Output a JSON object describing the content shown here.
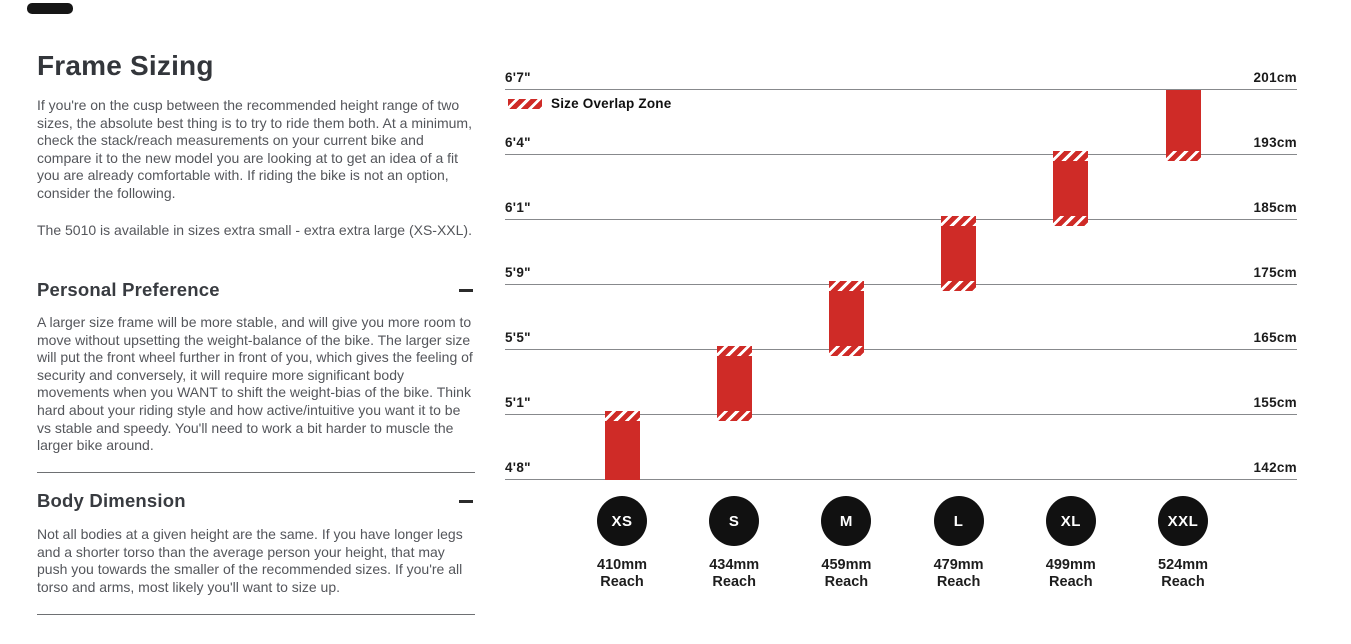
{
  "article": {
    "title": "Frame Sizing",
    "intro": "If you're on the cusp between the recommended height range of two sizes, the absolute best thing is to try to ride them both. At a minimum, check the stack/reach measurements on your current bike and compare it to the new model you are looking at to get an idea of a fit you are already comfortable with. If riding the bike is not an option, consider the following.",
    "availability": "The 5010 is available in sizes extra small - extra extra large (XS-XXL).",
    "sections": [
      {
        "heading": "Personal Preference",
        "collapse_state": "expanded",
        "body": "A larger size frame will be more stable, and will give you more room to move without upsetting the weight-balance of the bike. The larger size will put the front wheel further in front of you, which gives the feeling of security and conversely, it will require more significant body movements when you WANT to shift the weight-bias of the bike. Think hard about your riding style and how active/intuitive you want it to be vs stable and speedy. You'll need to work a bit harder to muscle the larger bike around."
      },
      {
        "heading": "Body Dimension",
        "collapse_state": "expanded",
        "body": "Not all bodies at a given height are the same. If you have longer legs and a shorter torso than the average person your height, that may push you towards the smaller of the recommended sizes. If you're all torso and arms, most likely you'll want to size up."
      }
    ]
  },
  "chart_data": {
    "type": "bar",
    "variant": "vertical floating range bars (rider height vs frame size)",
    "legend_label": "Size Overlap Zone",
    "grid": true,
    "height_lines": [
      {
        "ft": "6'7\"",
        "cm": "201cm"
      },
      {
        "ft": "6'4\"",
        "cm": "193cm"
      },
      {
        "ft": "6'1\"",
        "cm": "185cm"
      },
      {
        "ft": "5'9\"",
        "cm": "175cm"
      },
      {
        "ft": "5'5\"",
        "cm": "165cm"
      },
      {
        "ft": "5'1\"",
        "cm": "155cm"
      },
      {
        "ft": "4'8\"",
        "cm": "142cm"
      }
    ],
    "reach_unit_label": "Reach",
    "sizes": [
      {
        "label": "XS",
        "reach": "410mm",
        "range_ft": [
          "4'8\"",
          "5'1\""
        ],
        "range_cm": [
          142,
          155
        ],
        "top_line": 5,
        "bottom_line": 6,
        "overlap_top": true,
        "overlap_bottom": false
      },
      {
        "label": "S",
        "reach": "434mm",
        "range_ft": [
          "5'1\"",
          "5'5\""
        ],
        "range_cm": [
          155,
          165
        ],
        "top_line": 4,
        "bottom_line": 5,
        "overlap_top": true,
        "overlap_bottom": true
      },
      {
        "label": "M",
        "reach": "459mm",
        "range_ft": [
          "5'5\"",
          "5'9\""
        ],
        "range_cm": [
          165,
          175
        ],
        "top_line": 3,
        "bottom_line": 4,
        "overlap_top": true,
        "overlap_bottom": true
      },
      {
        "label": "L",
        "reach": "479mm",
        "range_ft": [
          "5'9\"",
          "6'1\""
        ],
        "range_cm": [
          175,
          185
        ],
        "top_line": 2,
        "bottom_line": 3,
        "overlap_top": true,
        "overlap_bottom": true
      },
      {
        "label": "XL",
        "reach": "499mm",
        "range_ft": [
          "6'1\"",
          "6'4\""
        ],
        "range_cm": [
          185,
          193
        ],
        "top_line": 1,
        "bottom_line": 2,
        "overlap_top": true,
        "overlap_bottom": true
      },
      {
        "label": "XXL",
        "reach": "524mm",
        "range_ft": [
          "6'4\"",
          "6'7\""
        ],
        "range_cm": [
          193,
          201
        ],
        "top_line": 0,
        "bottom_line": 1,
        "overlap_top": false,
        "overlap_bottom": true
      }
    ],
    "colors": {
      "bar_red": "#cf2b27",
      "circle_black": "#111111",
      "gridline_gray": "#87898c",
      "label_black": "#1b1b1b"
    }
  }
}
